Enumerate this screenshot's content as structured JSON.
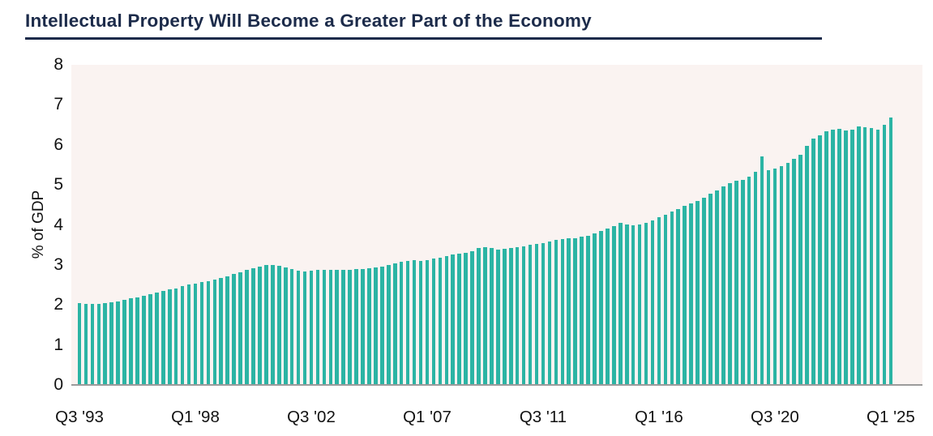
{
  "header": {
    "title": "Intellectual Property Will Become a Greater Part of the Economy",
    "title_color": "#1c2b4a"
  },
  "chart_data": {
    "type": "bar",
    "title": "Intellectual Property Will Become a Greater Part of the Economy",
    "xlabel": "",
    "ylabel": "% of GDP",
    "ylim": [
      0,
      8
    ],
    "y_ticks": [
      0,
      1,
      2,
      3,
      4,
      5,
      6,
      7,
      8
    ],
    "x_start": "Q3 1993",
    "x_end": "Q1 2025",
    "frequency": "quarterly",
    "x_tick_labels": [
      "Q3 '93",
      "Q1 '98",
      "Q3 '02",
      "Q1 '07",
      "Q3 '11",
      "Q1 '16",
      "Q3 '20",
      "Q1 '25"
    ],
    "x_tick_indices": [
      0,
      18,
      36,
      54,
      72,
      90,
      108,
      126
    ],
    "grid": false,
    "legend": false,
    "bar_color": "#2bb4a4",
    "plot_bg_color": "#faf3f1",
    "axis_line_color": "#9b9b9b",
    "values": [
      2.05,
      2.03,
      2.02,
      2.02,
      2.04,
      2.06,
      2.09,
      2.12,
      2.16,
      2.19,
      2.22,
      2.26,
      2.3,
      2.34,
      2.38,
      2.42,
      2.47,
      2.52,
      2.54,
      2.57,
      2.6,
      2.64,
      2.68,
      2.72,
      2.77,
      2.82,
      2.87,
      2.92,
      2.96,
      2.99,
      3.0,
      2.97,
      2.93,
      2.89,
      2.86,
      2.84,
      2.85,
      2.87,
      2.88,
      2.87,
      2.88,
      2.87,
      2.88,
      2.89,
      2.89,
      2.91,
      2.93,
      2.96,
      3.0,
      3.04,
      3.08,
      3.1,
      3.11,
      3.1,
      3.12,
      3.15,
      3.18,
      3.22,
      3.26,
      3.28,
      3.31,
      3.35,
      3.42,
      3.44,
      3.42,
      3.38,
      3.41,
      3.42,
      3.45,
      3.46,
      3.5,
      3.52,
      3.55,
      3.58,
      3.62,
      3.64,
      3.66,
      3.67,
      3.7,
      3.73,
      3.78,
      3.84,
      3.9,
      3.97,
      4.06,
      4.02,
      4.0,
      4.01,
      4.06,
      4.12,
      4.19,
      4.26,
      4.33,
      4.4,
      4.47,
      4.54,
      4.6,
      4.68,
      4.77,
      4.87,
      4.97,
      5.05,
      5.1,
      5.13,
      5.2,
      5.33,
      5.72,
      5.37,
      5.41,
      5.47,
      5.55,
      5.65,
      5.75,
      5.97,
      6.15,
      6.24,
      6.33,
      6.37,
      6.4,
      6.35,
      6.37,
      6.46,
      6.44,
      6.43,
      6.37,
      6.5,
      6.68
    ]
  }
}
